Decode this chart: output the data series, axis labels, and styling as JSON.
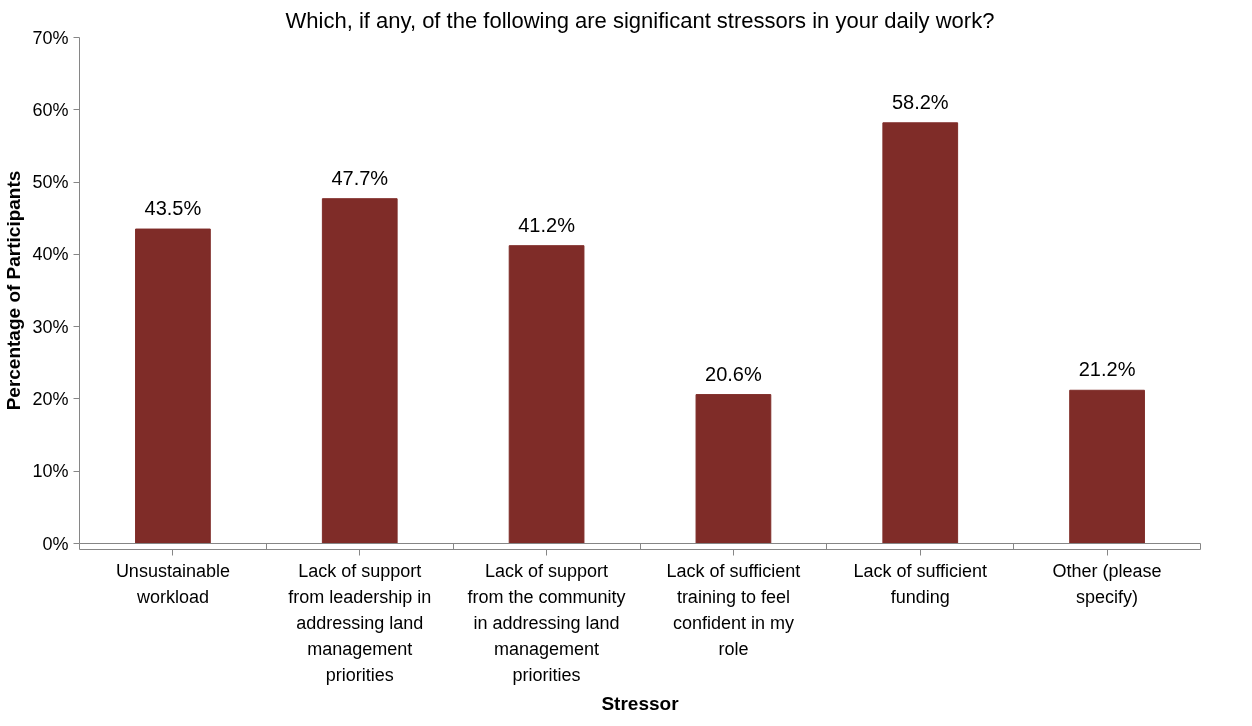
{
  "chart_data": {
    "type": "bar",
    "title": "Which, if any, of the following are significant stressors in your daily work?",
    "xlabel": "Stressor",
    "ylabel": "Percentage of Participants",
    "categories": [
      "Unsustainable workload",
      "Lack of support from leadership in addressing land management priorities",
      "Lack of support from the community in addressing land management priorities",
      "Lack of sufficient training to feel confident in my role",
      "Lack of sufficient funding",
      "Other (please specify)"
    ],
    "values": [
      43.5,
      47.7,
      41.2,
      20.6,
      58.2,
      21.2
    ],
    "value_labels": [
      "43.5%",
      "47.7%",
      "41.2%",
      "20.6%",
      "58.2%",
      "21.2%"
    ],
    "color": "#7f2c28",
    "ylim": [
      0,
      70
    ],
    "yticks": [
      {
        "value": 0,
        "label": "0%"
      },
      {
        "value": 10,
        "label": "10%"
      },
      {
        "value": 20,
        "label": "20%"
      },
      {
        "value": 30,
        "label": "30%"
      },
      {
        "value": 40,
        "label": "40%"
      },
      {
        "value": 50,
        "label": "50%"
      },
      {
        "value": 60,
        "label": "60%"
      },
      {
        "value": 70,
        "label": "70%"
      }
    ],
    "grid": false
  }
}
